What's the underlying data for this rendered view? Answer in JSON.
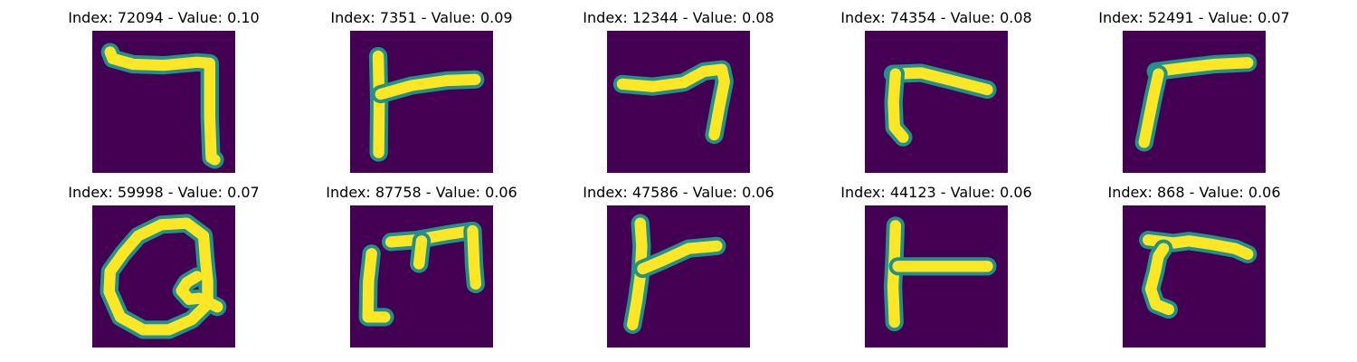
{
  "colors": {
    "background": "#440154",
    "mid_dark": "#31688e",
    "mid": "#21918c",
    "mid_light": "#5ec962",
    "stroke": "#fde725"
  },
  "panels": [
    {
      "title": "Index: 72094 - Value: 0.10"
    },
    {
      "title": "Index: 7351 - Value: 0.09"
    },
    {
      "title": "Index: 12344 - Value: 0.08"
    },
    {
      "title": "Index: 74354 - Value: 0.08"
    },
    {
      "title": "Index: 52491 - Value: 0.07"
    },
    {
      "title": "Index: 59998 - Value: 0.07"
    },
    {
      "title": "Index: 87758 - Value: 0.06"
    },
    {
      "title": "Index: 47586 - Value: 0.06"
    },
    {
      "title": "Index: 44123 - Value: 0.06"
    },
    {
      "title": "Index: 868 - Value: 0.06"
    }
  ]
}
